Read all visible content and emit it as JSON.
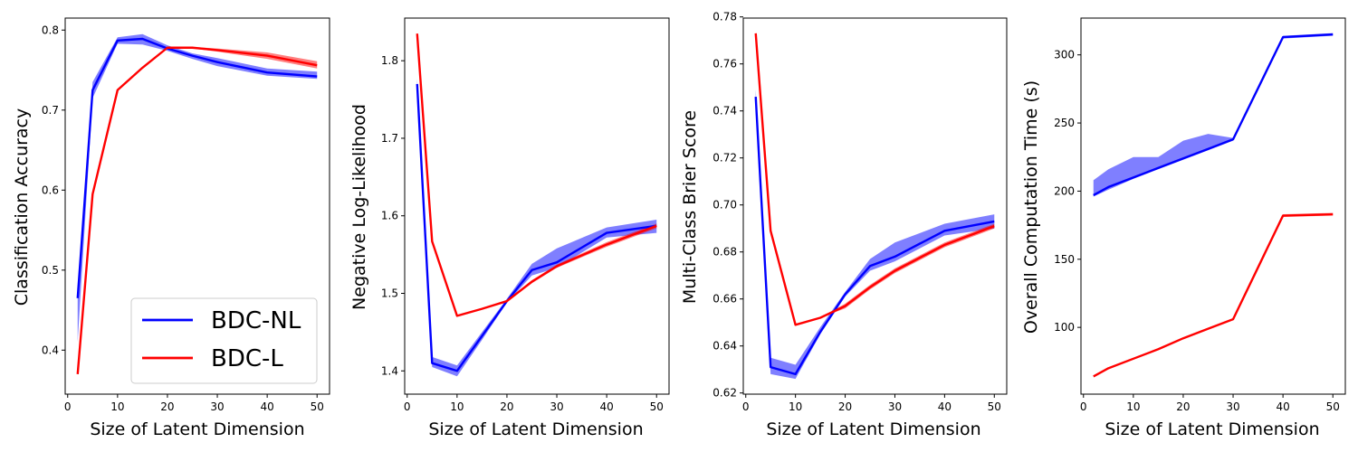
{
  "xlabel": "Size of Latent Dimension",
  "colors": {
    "BDC-NL": "#0000ff",
    "BDC-L": "#ff0000"
  },
  "legend": {
    "position": "lower right",
    "entries": [
      "BDC-NL",
      "BDC-L"
    ]
  },
  "chart_data": [
    {
      "type": "line",
      "ylabel": "Classification Accuracy",
      "xlabel": "Size of Latent Dimension",
      "xlim": [
        -0.5,
        52.5
      ],
      "ylim": [
        0.345,
        0.815
      ],
      "xticks": [
        0,
        10,
        20,
        30,
        40,
        50
      ],
      "yticks": [
        0.4,
        0.5,
        0.6,
        0.7,
        0.8
      ],
      "ytick_labels": [
        "0.4",
        "0.5",
        "0.6",
        "0.7",
        "0.8"
      ],
      "series": [
        {
          "name": "BDC-NL",
          "x": [
            2,
            5,
            10,
            15,
            20,
            25,
            30,
            40,
            50
          ],
          "values": [
            0.465,
            0.725,
            0.787,
            0.789,
            0.777,
            0.768,
            0.76,
            0.747,
            0.742
          ],
          "lower": [
            0.41,
            0.715,
            0.783,
            0.782,
            0.774,
            0.764,
            0.755,
            0.743,
            0.739
          ],
          "upper": [
            0.47,
            0.735,
            0.791,
            0.795,
            0.781,
            0.771,
            0.765,
            0.752,
            0.748
          ]
        },
        {
          "name": "BDC-L",
          "x": [
            2,
            5,
            10,
            15,
            20,
            25,
            30,
            40,
            50
          ],
          "values": [
            0.37,
            0.595,
            0.725,
            0.753,
            0.778,
            0.778,
            0.775,
            0.768,
            0.756
          ],
          "lower": [
            0.37,
            0.595,
            0.725,
            0.753,
            0.777,
            0.777,
            0.773,
            0.764,
            0.752
          ],
          "upper": [
            0.37,
            0.595,
            0.725,
            0.753,
            0.779,
            0.779,
            0.777,
            0.772,
            0.761
          ]
        }
      ],
      "show_legend": true
    },
    {
      "type": "line",
      "ylabel": "Negative Log-Likelihood",
      "xlabel": "Size of Latent Dimension",
      "xlim": [
        -0.5,
        52.5
      ],
      "ylim": [
        1.37,
        1.855
      ],
      "xticks": [
        0,
        10,
        20,
        30,
        40,
        50
      ],
      "yticks": [
        1.4,
        1.5,
        1.6,
        1.7,
        1.8
      ],
      "ytick_labels": [
        "1.4",
        "1.5",
        "1.6",
        "1.7",
        "1.8"
      ],
      "series": [
        {
          "name": "BDC-NL",
          "x": [
            2,
            5,
            10,
            15,
            20,
            25,
            30,
            40,
            50
          ],
          "values": [
            1.77,
            1.41,
            1.4,
            1.445,
            1.49,
            1.53,
            1.54,
            1.578,
            1.587
          ],
          "lower": [
            1.765,
            1.405,
            1.393,
            1.44,
            1.488,
            1.523,
            1.533,
            1.572,
            1.578
          ],
          "upper": [
            1.777,
            1.418,
            1.407,
            1.45,
            1.493,
            1.538,
            1.558,
            1.585,
            1.595
          ]
        },
        {
          "name": "BDC-L",
          "x": [
            2,
            5,
            10,
            15,
            20,
            25,
            30,
            40,
            50
          ],
          "values": [
            1.835,
            1.567,
            1.471,
            1.48,
            1.49,
            1.515,
            1.535,
            1.563,
            1.587
          ],
          "lower": [
            1.835,
            1.567,
            1.471,
            1.48,
            1.489,
            1.513,
            1.533,
            1.56,
            1.584
          ],
          "upper": [
            1.835,
            1.567,
            1.471,
            1.48,
            1.491,
            1.517,
            1.537,
            1.566,
            1.59
          ]
        }
      ],
      "show_legend": false
    },
    {
      "type": "line",
      "ylabel": "Multi-Class Brier Score",
      "xlabel": "Size of Latent Dimension",
      "xlim": [
        -0.5,
        52.5
      ],
      "ylim": [
        0.6195,
        0.7795
      ],
      "xticks": [
        0,
        10,
        20,
        30,
        40,
        50
      ],
      "yticks": [
        0.62,
        0.64,
        0.66,
        0.68,
        0.7,
        0.72,
        0.74,
        0.76,
        0.78
      ],
      "ytick_labels": [
        "0.62",
        "0.64",
        "0.66",
        "0.68",
        "0.70",
        "0.72",
        "0.74",
        "0.76",
        "0.78"
      ],
      "series": [
        {
          "name": "BDC-NL",
          "x": [
            2,
            5,
            10,
            15,
            20,
            25,
            30,
            40,
            50
          ],
          "values": [
            0.746,
            0.631,
            0.628,
            0.646,
            0.662,
            0.674,
            0.678,
            0.689,
            0.693
          ],
          "lower": [
            0.744,
            0.628,
            0.626,
            0.645,
            0.661,
            0.672,
            0.676,
            0.687,
            0.69
          ],
          "upper": [
            0.749,
            0.635,
            0.632,
            0.648,
            0.663,
            0.677,
            0.684,
            0.692,
            0.696
          ]
        },
        {
          "name": "BDC-L",
          "x": [
            2,
            5,
            10,
            15,
            20,
            25,
            30,
            40,
            50
          ],
          "values": [
            0.773,
            0.689,
            0.649,
            0.652,
            0.657,
            0.665,
            0.672,
            0.683,
            0.691
          ],
          "lower": [
            0.773,
            0.689,
            0.649,
            0.652,
            0.656,
            0.664,
            0.671,
            0.682,
            0.69
          ],
          "upper": [
            0.773,
            0.689,
            0.649,
            0.652,
            0.658,
            0.666,
            0.673,
            0.684,
            0.692
          ]
        }
      ],
      "show_legend": false
    },
    {
      "type": "line",
      "ylabel": "Overall Computation Time (s)",
      "xlabel": "Size of Latent Dimension",
      "xlim": [
        -0.5,
        52.5
      ],
      "ylim": [
        51,
        327
      ],
      "xticks": [
        0,
        10,
        20,
        30,
        40,
        50
      ],
      "yticks": [
        100,
        150,
        200,
        250,
        300
      ],
      "ytick_labels": [
        "100",
        "150",
        "200",
        "250",
        "300"
      ],
      "series": [
        {
          "name": "BDC-NL",
          "x": [
            2,
            5,
            10,
            15,
            20,
            25,
            30,
            40,
            50
          ],
          "values": [
            197,
            203,
            210,
            217,
            224,
            231,
            238,
            313,
            315
          ],
          "lower": [
            196,
            201,
            209,
            216,
            223,
            230,
            237,
            312,
            314
          ],
          "upper": [
            208,
            216,
            225,
            225,
            237,
            242,
            239,
            314,
            316
          ]
        },
        {
          "name": "BDC-L",
          "x": [
            2,
            5,
            10,
            15,
            20,
            25,
            30,
            40,
            50
          ],
          "values": [
            64,
            70,
            77,
            84,
            92,
            99,
            106,
            182,
            183
          ],
          "lower": [
            64,
            70,
            77,
            84,
            92,
            99,
            106,
            181,
            182
          ],
          "upper": [
            64,
            70,
            77,
            84,
            92,
            99,
            106,
            183,
            184
          ]
        }
      ],
      "show_legend": false
    }
  ]
}
